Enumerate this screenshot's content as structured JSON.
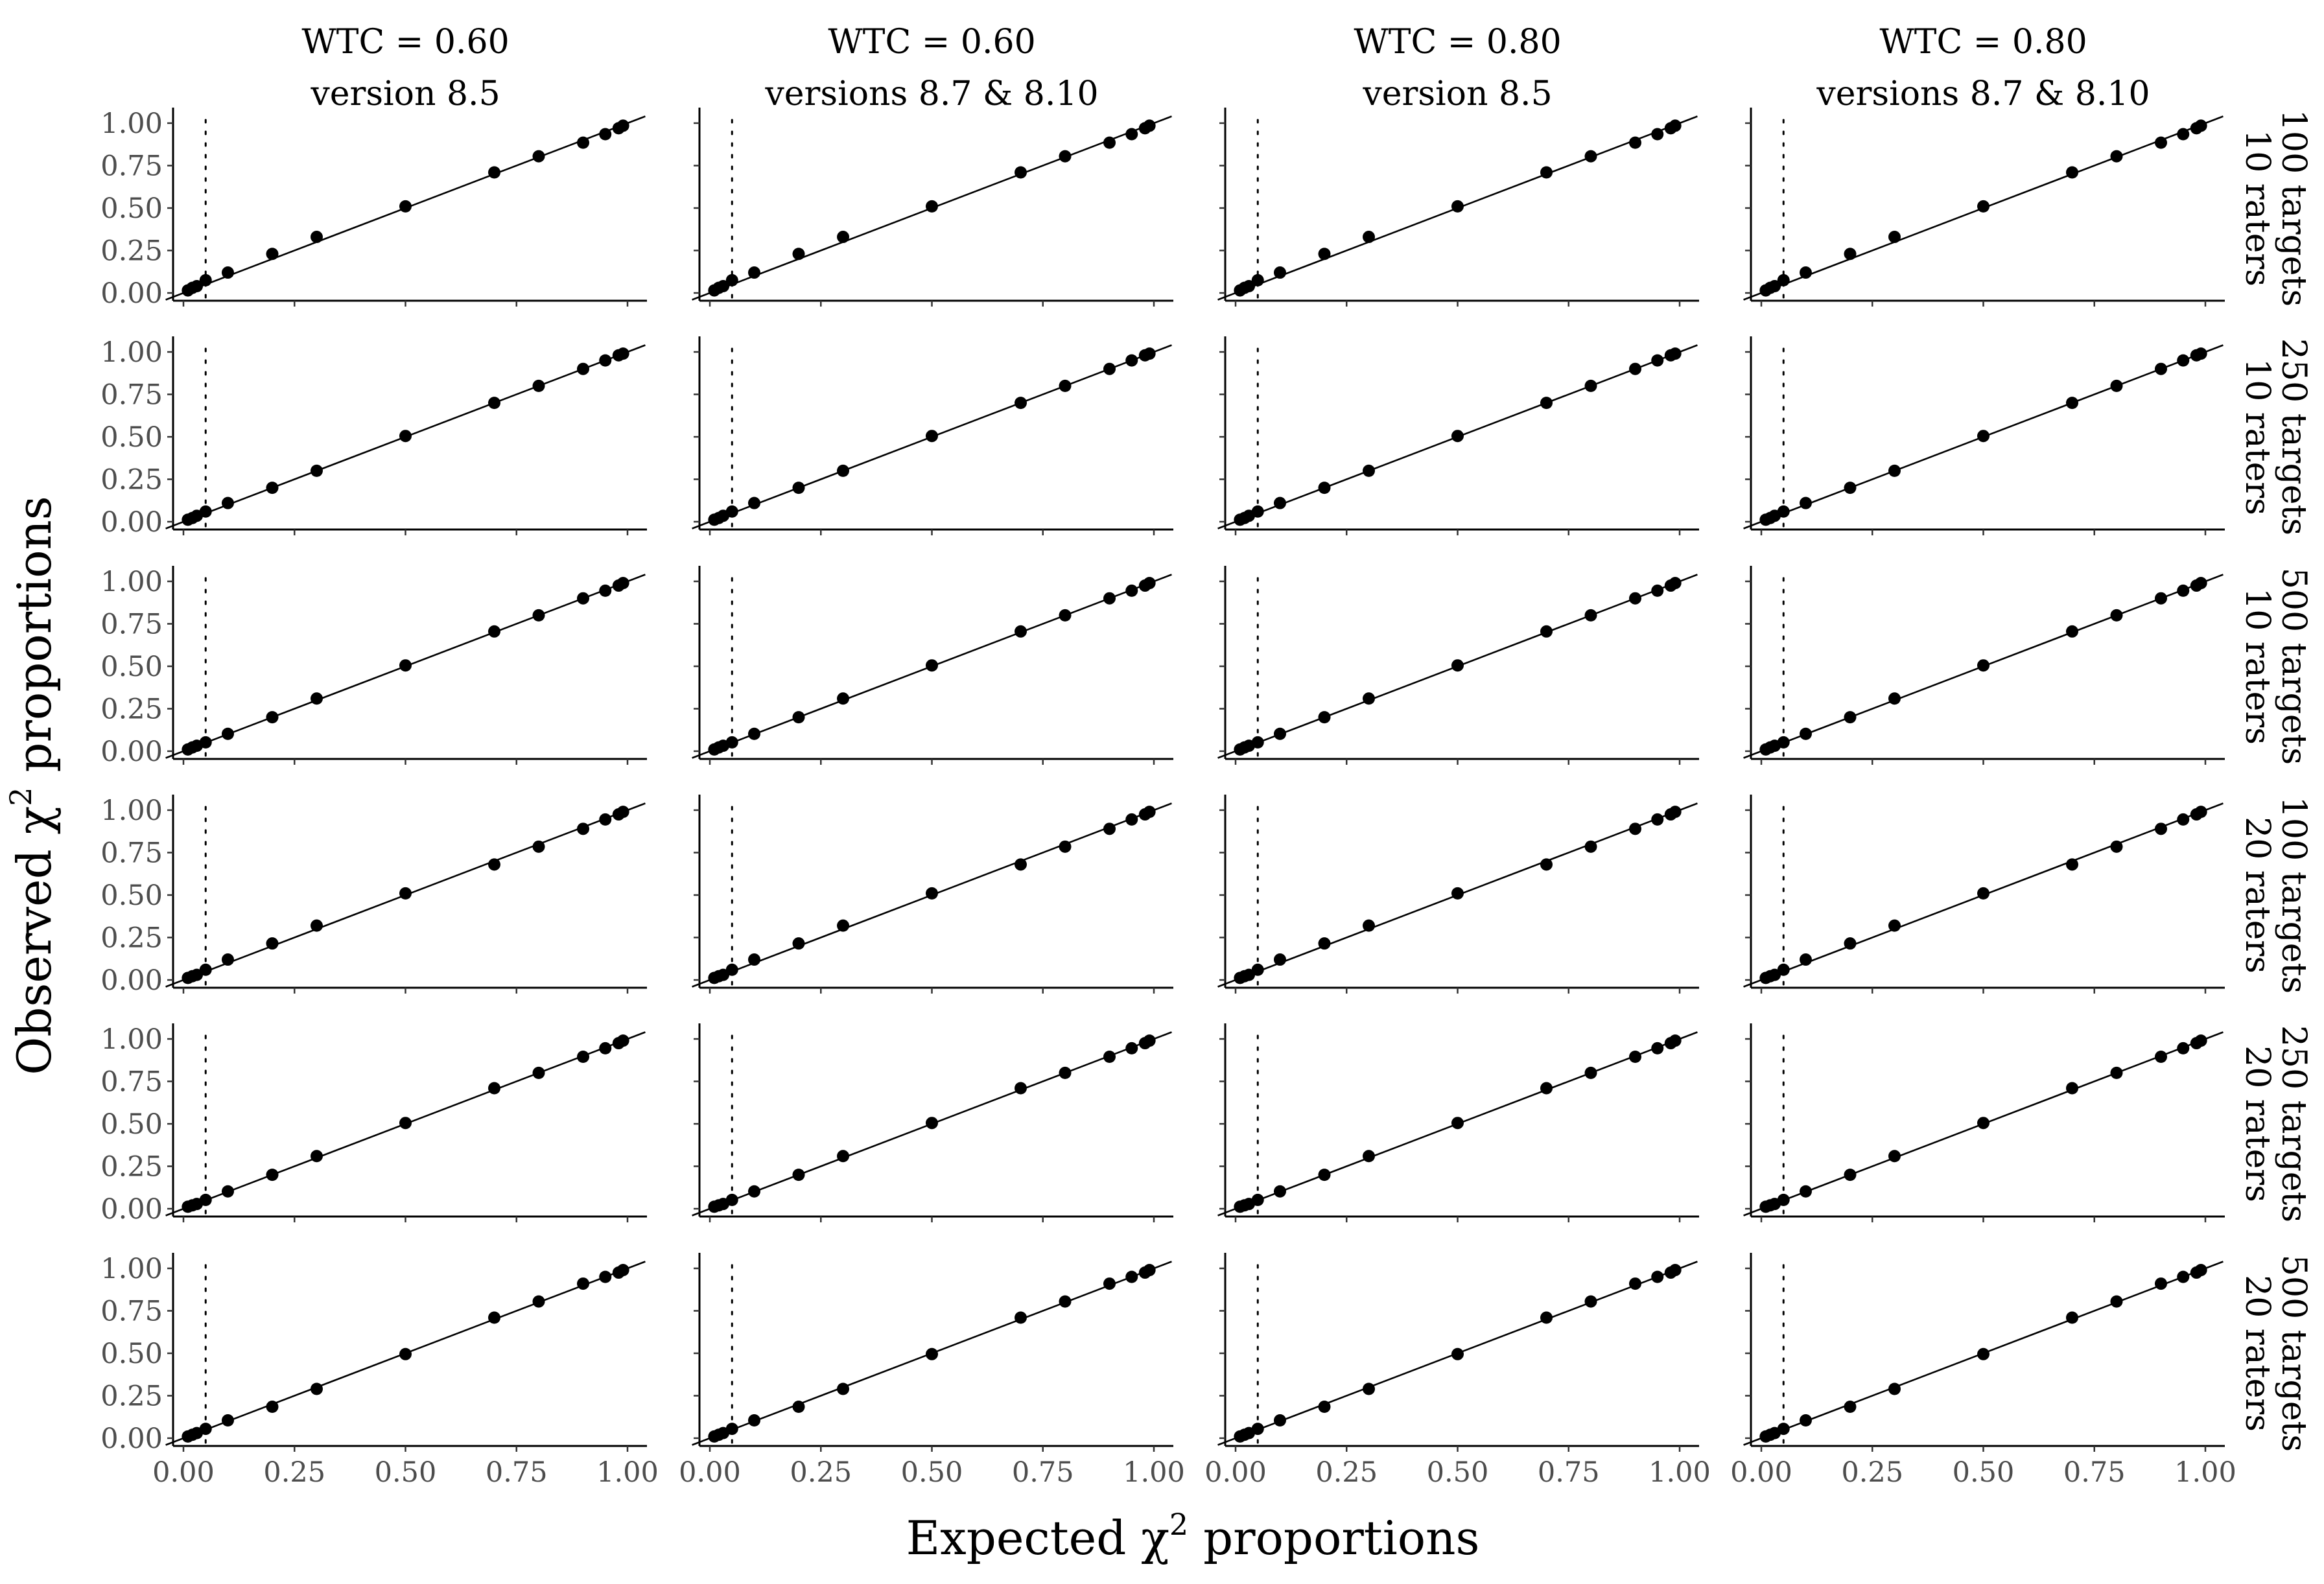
{
  "chart_data": {
    "type": "scatter",
    "title": "",
    "xlabel": "Expected χ",
    "xlabel_suffix": " proportions",
    "ylabel": "Observed χ",
    "ylabel_suffix": " proportions",
    "superscript": "2",
    "xlim": [
      0,
      1
    ],
    "ylim": [
      0,
      1
    ],
    "x_ticks": [
      "0.00",
      "0.25",
      "0.50",
      "0.75",
      "1.00"
    ],
    "y_ticks": [
      "0.00",
      "0.25",
      "0.50",
      "0.75",
      "1.00"
    ],
    "reference_x": 0.05,
    "diagonal": "y = x",
    "grid": false,
    "columns": [
      {
        "line1": "WTC = 0.60",
        "line2": "version 8.5"
      },
      {
        "line1": "WTC = 0.60",
        "line2": "versions 8.7 & 8.10"
      },
      {
        "line1": "WTC = 0.80",
        "line2": "version 8.5"
      },
      {
        "line1": "WTC = 0.80",
        "line2": "versions 8.7 & 8.10"
      }
    ],
    "rows": [
      {
        "line1": "10 raters",
        "line2": "100 targets",
        "y": [
          0.015,
          0.03,
          0.04,
          0.075,
          0.12,
          0.23,
          0.33,
          0.51,
          0.71,
          0.805,
          0.885,
          0.935,
          0.97,
          0.985
        ]
      },
      {
        "line1": "10 raters",
        "line2": "250 targets",
        "y": [
          0.012,
          0.022,
          0.035,
          0.06,
          0.11,
          0.2,
          0.3,
          0.505,
          0.7,
          0.8,
          0.9,
          0.95,
          0.98,
          0.99
        ]
      },
      {
        "line1": "10 raters",
        "line2": "500 targets",
        "y": [
          0.01,
          0.022,
          0.032,
          0.052,
          0.102,
          0.2,
          0.31,
          0.505,
          0.705,
          0.8,
          0.9,
          0.945,
          0.975,
          0.99
        ]
      },
      {
        "line1": "20 raters",
        "line2": "100 targets",
        "y": [
          0.012,
          0.022,
          0.03,
          0.06,
          0.12,
          0.215,
          0.32,
          0.51,
          0.68,
          0.785,
          0.89,
          0.945,
          0.975,
          0.99
        ]
      },
      {
        "line1": "20 raters",
        "line2": "250 targets",
        "y": [
          0.012,
          0.02,
          0.028,
          0.052,
          0.102,
          0.2,
          0.31,
          0.505,
          0.71,
          0.8,
          0.895,
          0.945,
          0.975,
          0.99
        ]
      },
      {
        "line1": "20 raters",
        "line2": "500 targets",
        "y": [
          0.01,
          0.02,
          0.03,
          0.055,
          0.105,
          0.185,
          0.29,
          0.495,
          0.71,
          0.805,
          0.91,
          0.95,
          0.975,
          0.99
        ]
      }
    ],
    "x": [
      0.01,
      0.02,
      0.03,
      0.05,
      0.1,
      0.2,
      0.3,
      0.5,
      0.7,
      0.8,
      0.9,
      0.95,
      0.98,
      0.99
    ]
  }
}
